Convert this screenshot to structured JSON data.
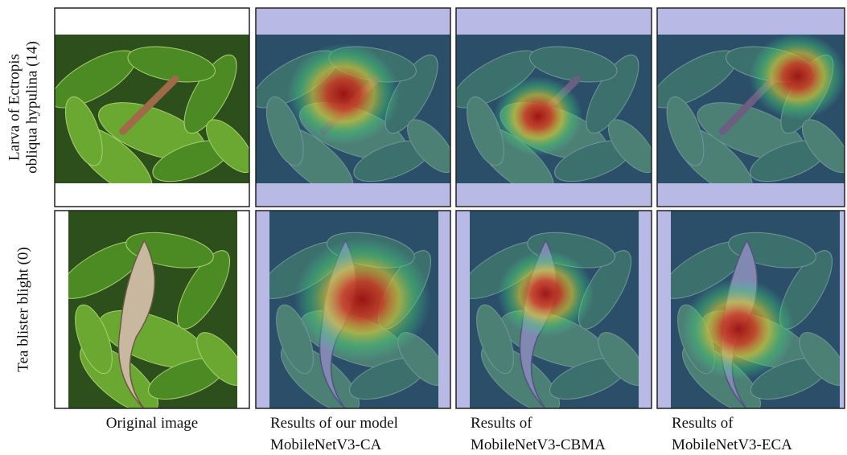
{
  "rows": [
    {
      "label_lines": [
        "Larva of Ectropis",
        "obliqua hypulina (14)"
      ]
    },
    {
      "label_lines": [
        "Tea blister blight (0)"
      ]
    }
  ],
  "columns": [
    {
      "caption_lines": [
        "Original image"
      ]
    },
    {
      "caption_lines": [
        "Results of our model",
        "MobileNetV3-CA"
      ]
    },
    {
      "caption_lines": [
        "Results of",
        "MobileNetV3-CBMA"
      ]
    },
    {
      "caption_lines": [
        "Results of",
        "MobileNetV3-ECA"
      ]
    }
  ]
}
